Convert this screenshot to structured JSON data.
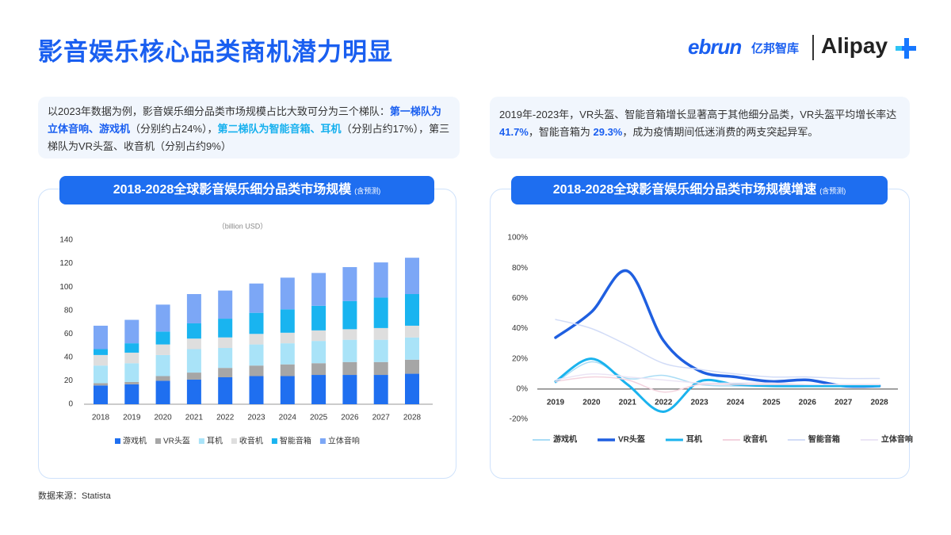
{
  "header": {
    "title": "影音娱乐核心品类商机潜力明显"
  },
  "logo": {
    "ebrun": "ebrun",
    "cn": "亿邦智库",
    "alipay": "Alipay"
  },
  "notes": [
    {
      "segments": [
        "以2023年数据为例，影音娱乐细分品类市场规模占比大致可分为三个梯队：",
        "第一梯队为立体音响、游戏机",
        "（分别约占24%），",
        "第二梯队为智能音箱、耳机",
        "（分别占约17%），第三梯队为VR头盔、收音机（分别占约9%）"
      ]
    },
    {
      "segments": [
        "2019年-2023年，VR头盔、智能音箱增长显著高于其他细分品类，VR头盔平均增长率达 ",
        "41.7%",
        "，智能音箱为 ",
        "29.3%",
        "，成为疫情期间低迷消费的两支突起异军。"
      ]
    }
  ],
  "chart_data": [
    {
      "type": "bar",
      "stacked": true,
      "title": "2018-2028全球影音娱乐细分品类市场规模",
      "subtitle": "(含预测)",
      "y_label": "（billion USD）",
      "categories": [
        "2018",
        "2019",
        "2020",
        "2021",
        "2022",
        "2023",
        "2024",
        "2025",
        "2026",
        "2027",
        "2028"
      ],
      "ylim": [
        0,
        140
      ],
      "yticks": [
        0,
        20,
        40,
        60,
        80,
        100,
        120,
        140
      ],
      "series": [
        {
          "name": "游戏机",
          "color": "#1f6ff0",
          "values": [
            16,
            17,
            20,
            21,
            23,
            24,
            24,
            25,
            25,
            25,
            26
          ]
        },
        {
          "name": "VR头盔",
          "color": "#a6a6a6",
          "values": [
            2,
            2,
            4,
            6,
            8,
            9,
            10,
            10,
            11,
            11,
            12
          ]
        },
        {
          "name": "耳机",
          "color": "#a9e3f8",
          "values": [
            15,
            16,
            18,
            20,
            17,
            18,
            18,
            19,
            19,
            19,
            19
          ]
        },
        {
          "name": "收音机",
          "color": "#dedede",
          "values": [
            9,
            9,
            9,
            9,
            9,
            9,
            9,
            9,
            9,
            10,
            10
          ]
        },
        {
          "name": "智能音箱",
          "color": "#19b4f0",
          "values": [
            5,
            8,
            11,
            13,
            16,
            18,
            20,
            21,
            24,
            26,
            27
          ]
        },
        {
          "name": "立体音响",
          "color": "#7ca7f6",
          "values": [
            20,
            20,
            23,
            25,
            24,
            25,
            27,
            28,
            29,
            30,
            31
          ]
        }
      ]
    },
    {
      "type": "line",
      "smooth": true,
      "title": "2018-2028全球影音娱乐细分品类市场规模增速",
      "subtitle": "(含预测)",
      "categories": [
        "2019",
        "2020",
        "2021",
        "2022",
        "2023",
        "2024",
        "2025",
        "2026",
        "2027",
        "2028"
      ],
      "ylim": [
        -20,
        100
      ],
      "yticks": [
        {
          "value": -20,
          "label": "-20%"
        },
        {
          "value": 0,
          "label": "0%"
        },
        {
          "value": 20,
          "label": "20%"
        },
        {
          "value": 40,
          "label": "40%"
        },
        {
          "value": 60,
          "label": "60%"
        },
        {
          "value": 80,
          "label": "80%"
        },
        {
          "value": 100,
          "label": "100%"
        }
      ],
      "series": [
        {
          "name": "游戏机",
          "color": "#a9dcf5",
          "width": 1.5,
          "values": [
            4,
            18,
            7,
            9,
            3,
            2,
            2,
            2,
            2,
            2
          ]
        },
        {
          "name": "VR头盔",
          "color": "#1f5fe0",
          "width": 3.5,
          "values": [
            34,
            51,
            78,
            32,
            12,
            8,
            5,
            6,
            2,
            2
          ]
        },
        {
          "name": "耳机",
          "color": "#1ab3ee",
          "width": 3,
          "values": [
            5,
            20,
            3,
            -15,
            5,
            3,
            2,
            2,
            2,
            2
          ]
        },
        {
          "name": "收音机",
          "color": "#f3d3de",
          "width": 1.5,
          "values": [
            5,
            8,
            6,
            -2,
            3,
            3,
            3,
            3,
            3,
            3
          ]
        },
        {
          "name": "智能音箱",
          "color": "#d2dcf7",
          "width": 1.5,
          "values": [
            46,
            40,
            29,
            17,
            13,
            10,
            8,
            8,
            7,
            7
          ]
        },
        {
          "name": "立体音响",
          "color": "#ebe5f5",
          "width": 1.5,
          "values": [
            6,
            10,
            8,
            6,
            4,
            4,
            4,
            3,
            3,
            3
          ]
        }
      ]
    }
  ],
  "source": "数据来源：Statista"
}
